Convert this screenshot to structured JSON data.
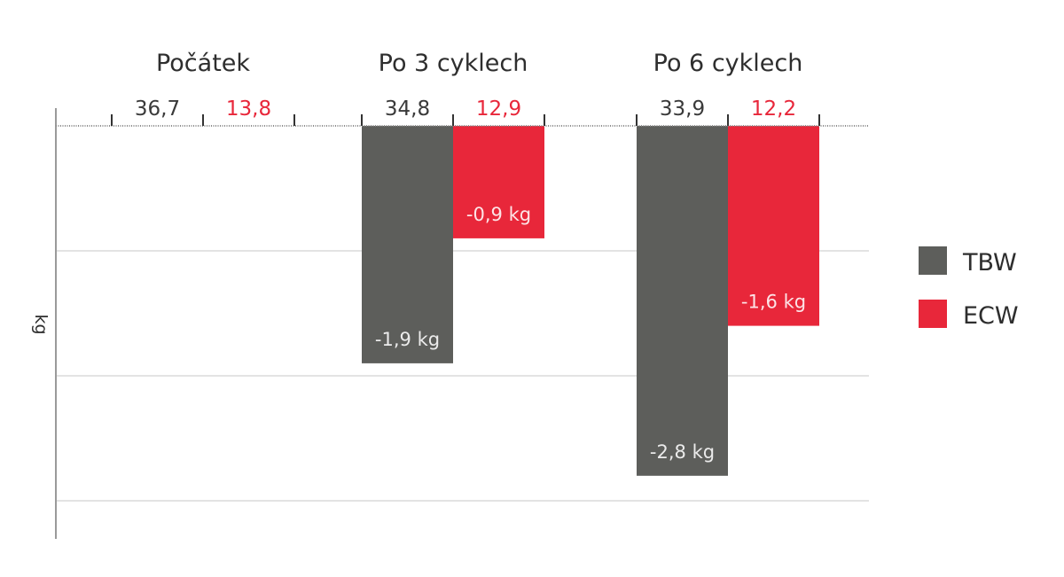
{
  "chart_data": {
    "type": "bar",
    "ylabel": "kg",
    "ylim": [
      -3.0,
      0
    ],
    "grid": true,
    "legend_position": "right",
    "categories": [
      "Počátek",
      "Po 3 cyklech",
      "Po 6 cyklech"
    ],
    "series": [
      {
        "name": "TBW",
        "color": "#5d5e5b",
        "baseline_labels": [
          "36,7",
          "34,8",
          "33,9"
        ],
        "values": [
          0,
          -1.9,
          -2.8
        ],
        "value_labels": [
          "",
          "-1,9 kg",
          "-2,8 kg"
        ]
      },
      {
        "name": "ECW",
        "color": "#e8273a",
        "baseline_labels": [
          "13,8",
          "12,9",
          "12,2"
        ],
        "values": [
          0,
          -0.9,
          -1.6
        ],
        "value_labels": [
          "",
          "-0,9 kg",
          "-1,6 kg"
        ]
      }
    ]
  }
}
